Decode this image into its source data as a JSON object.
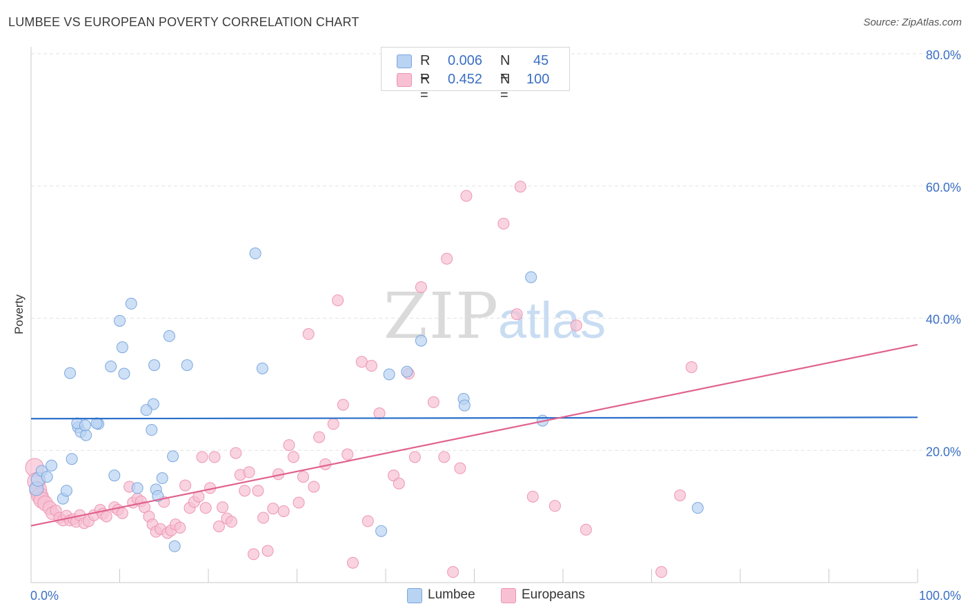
{
  "title": "LUMBEE VS EUROPEAN POVERTY CORRELATION CHART",
  "source": "Source: ZipAtlas.com",
  "watermark": {
    "zip": "ZIP",
    "atlas": "atlas"
  },
  "legend": {
    "rows": [
      {
        "r_label": "R =",
        "r_value": "0.006",
        "n_label": "N =",
        "n_value": "45"
      },
      {
        "r_label": "R =",
        "r_value": "0.452",
        "n_label": "N =",
        "n_value": "100"
      }
    ]
  },
  "bottom_legend": [
    "Lumbee",
    "Europeans"
  ],
  "colors": {
    "lumbee_fill": "#b9d3f2",
    "lumbee_stroke": "#7aa6de",
    "lumbee_line": "#2a6fc9",
    "europeans_fill": "#f7c0d3",
    "europeans_stroke": "#ee95b3",
    "europeans_line": "#e0618e",
    "axis_label": "#3a6fc4",
    "grid": "#e2e2e2"
  },
  "chart_data": {
    "type": "scatter",
    "title": "LUMBEE VS EUROPEAN POVERTY CORRELATION CHART",
    "xlabel": "",
    "ylabel": "Poverty",
    "xlim": [
      0,
      100
    ],
    "ylim": [
      0,
      80
    ],
    "x_tick_labels": [
      "0.0%",
      "100.0%"
    ],
    "y_ticks": [
      20,
      40,
      60,
      80
    ],
    "y_tick_labels": [
      "20.0%",
      "40.0%",
      "60.0%",
      "80.0%"
    ],
    "grid": "horizontal dashed",
    "legend_position": "top-center",
    "series": [
      {
        "name": "Lumbee",
        "r": 0.006,
        "n": 45,
        "trend": {
          "x": [
            0,
            100
          ],
          "y": [
            24.8,
            25.0
          ]
        },
        "points": [
          [
            0.6,
            14.2
          ],
          [
            0.8,
            15.6
          ],
          [
            1.2,
            16.9
          ],
          [
            1.8,
            16.0
          ],
          [
            2.3,
            17.7
          ],
          [
            3.6,
            12.7
          ],
          [
            4.0,
            13.9
          ],
          [
            4.6,
            18.7
          ],
          [
            4.4,
            31.7
          ],
          [
            5.3,
            23.5
          ],
          [
            5.6,
            22.8
          ],
          [
            5.2,
            24.1
          ],
          [
            6.2,
            22.3
          ],
          [
            6.1,
            23.8
          ],
          [
            7.6,
            24.0
          ],
          [
            7.4,
            24.1
          ],
          [
            9.0,
            32.7
          ],
          [
            9.4,
            16.2
          ],
          [
            10.0,
            39.6
          ],
          [
            10.3,
            35.6
          ],
          [
            10.5,
            31.6
          ],
          [
            11.3,
            42.2
          ],
          [
            13.6,
            23.1
          ],
          [
            13.8,
            27.0
          ],
          [
            12.0,
            14.3
          ],
          [
            13.0,
            26.1
          ],
          [
            13.9,
            32.9
          ],
          [
            14.8,
            15.8
          ],
          [
            14.1,
            14.1
          ],
          [
            15.6,
            37.3
          ],
          [
            16.0,
            19.1
          ],
          [
            17.6,
            32.9
          ],
          [
            16.2,
            5.5
          ],
          [
            14.3,
            13.1
          ],
          [
            25.3,
            49.8
          ],
          [
            26.1,
            32.4
          ],
          [
            39.5,
            7.8
          ],
          [
            40.4,
            31.5
          ],
          [
            42.4,
            31.9
          ],
          [
            44.0,
            36.6
          ],
          [
            48.8,
            27.8
          ],
          [
            48.9,
            26.8
          ],
          [
            56.4,
            46.2
          ],
          [
            57.7,
            24.5
          ],
          [
            75.2,
            11.3
          ]
        ]
      },
      {
        "name": "Europeans",
        "r": 0.452,
        "n": 100,
        "trend": {
          "x": [
            0,
            100
          ],
          "y": [
            8.6,
            36.0
          ]
        },
        "points": [
          [
            0.4,
            17.4
          ],
          [
            0.6,
            15.3
          ],
          [
            0.8,
            14.0
          ],
          [
            1.0,
            13.1
          ],
          [
            1.2,
            12.5
          ],
          [
            1.6,
            12.0
          ],
          [
            2.1,
            11.3
          ],
          [
            2.4,
            10.5
          ],
          [
            2.8,
            10.9
          ],
          [
            3.2,
            9.8
          ],
          [
            3.6,
            9.4
          ],
          [
            4.0,
            10.1
          ],
          [
            4.4,
            9.4
          ],
          [
            4.8,
            9.6
          ],
          [
            5.1,
            9.2
          ],
          [
            5.5,
            10.2
          ],
          [
            6.0,
            9.0
          ],
          [
            6.5,
            9.3
          ],
          [
            7.1,
            10.2
          ],
          [
            7.8,
            11.0
          ],
          [
            8.1,
            10.4
          ],
          [
            8.5,
            10.0
          ],
          [
            9.4,
            11.4
          ],
          [
            9.8,
            11.0
          ],
          [
            10.3,
            10.5
          ],
          [
            11.1,
            14.5
          ],
          [
            11.5,
            12.1
          ],
          [
            12.0,
            12.7
          ],
          [
            12.4,
            12.3
          ],
          [
            12.8,
            11.4
          ],
          [
            13.3,
            10.0
          ],
          [
            13.7,
            8.8
          ],
          [
            14.1,
            7.7
          ],
          [
            14.6,
            8.1
          ],
          [
            15.0,
            12.2
          ],
          [
            15.4,
            7.5
          ],
          [
            15.8,
            7.9
          ],
          [
            16.3,
            8.8
          ],
          [
            16.8,
            8.3
          ],
          [
            17.4,
            14.7
          ],
          [
            17.9,
            11.3
          ],
          [
            18.4,
            12.2
          ],
          [
            18.9,
            13.0
          ],
          [
            19.3,
            19.0
          ],
          [
            19.7,
            11.3
          ],
          [
            20.2,
            14.3
          ],
          [
            20.7,
            19.0
          ],
          [
            21.2,
            8.5
          ],
          [
            21.6,
            11.4
          ],
          [
            22.1,
            9.7
          ],
          [
            22.6,
            9.2
          ],
          [
            23.1,
            19.6
          ],
          [
            23.6,
            16.3
          ],
          [
            24.1,
            13.9
          ],
          [
            24.6,
            16.7
          ],
          [
            25.1,
            4.3
          ],
          [
            25.6,
            13.9
          ],
          [
            26.2,
            9.8
          ],
          [
            26.7,
            4.8
          ],
          [
            27.3,
            11.2
          ],
          [
            27.9,
            16.4
          ],
          [
            28.5,
            10.8
          ],
          [
            29.1,
            20.8
          ],
          [
            29.6,
            19.0
          ],
          [
            30.2,
            12.1
          ],
          [
            30.7,
            16.0
          ],
          [
            31.3,
            37.6
          ],
          [
            31.9,
            14.5
          ],
          [
            32.5,
            22.0
          ],
          [
            33.2,
            17.9
          ],
          [
            34.1,
            24.0
          ],
          [
            34.6,
            42.7
          ],
          [
            35.2,
            26.9
          ],
          [
            35.7,
            19.4
          ],
          [
            36.3,
            3.0
          ],
          [
            37.3,
            33.4
          ],
          [
            38.0,
            9.3
          ],
          [
            38.4,
            32.8
          ],
          [
            39.3,
            25.6
          ],
          [
            40.9,
            16.2
          ],
          [
            41.5,
            15.0
          ],
          [
            42.6,
            31.6
          ],
          [
            43.3,
            19.0
          ],
          [
            44.0,
            44.7
          ],
          [
            45.4,
            27.3
          ],
          [
            46.6,
            19.0
          ],
          [
            46.9,
            49.0
          ],
          [
            47.6,
            1.6
          ],
          [
            48.4,
            17.3
          ],
          [
            49.1,
            58.5
          ],
          [
            53.3,
            54.3
          ],
          [
            54.8,
            40.6
          ],
          [
            55.2,
            59.9
          ],
          [
            56.6,
            13.0
          ],
          [
            59.1,
            11.6
          ],
          [
            61.5,
            38.9
          ],
          [
            62.6,
            8.0
          ],
          [
            73.2,
            13.2
          ],
          [
            74.5,
            32.6
          ],
          [
            71.1,
            1.6
          ]
        ]
      }
    ]
  }
}
